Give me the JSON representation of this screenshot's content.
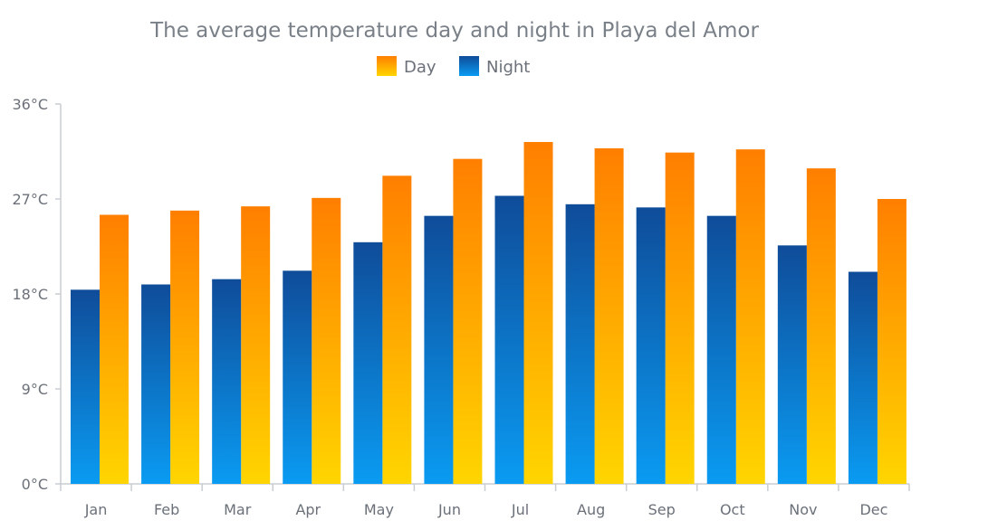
{
  "chart_data": {
    "type": "bar",
    "title": "The average temperature day and night in Playa del Amor",
    "categories": [
      "Jan",
      "Feb",
      "Mar",
      "Apr",
      "May",
      "Jun",
      "Jul",
      "Aug",
      "Sep",
      "Oct",
      "Nov",
      "Dec"
    ],
    "series": [
      {
        "name": "Night",
        "values": [
          18.4,
          18.9,
          19.4,
          20.2,
          22.9,
          25.4,
          27.3,
          26.5,
          26.2,
          25.4,
          22.6,
          20.1
        ],
        "gradient": [
          "#0f4c99",
          "#0a9bf2"
        ]
      },
      {
        "name": "Day",
        "values": [
          25.5,
          25.9,
          26.3,
          27.1,
          29.2,
          30.8,
          32.4,
          31.8,
          31.4,
          31.7,
          29.9,
          27.0
        ],
        "gradient": [
          "#ff7f00",
          "#ffd500"
        ]
      }
    ],
    "y_ticks": [
      "0°C",
      "9°C",
      "18°C",
      "27°C",
      "36°C"
    ],
    "ylim": [
      0,
      36
    ],
    "legend_placement": "top",
    "grid": false,
    "axis_color": "#c8cdd2"
  }
}
